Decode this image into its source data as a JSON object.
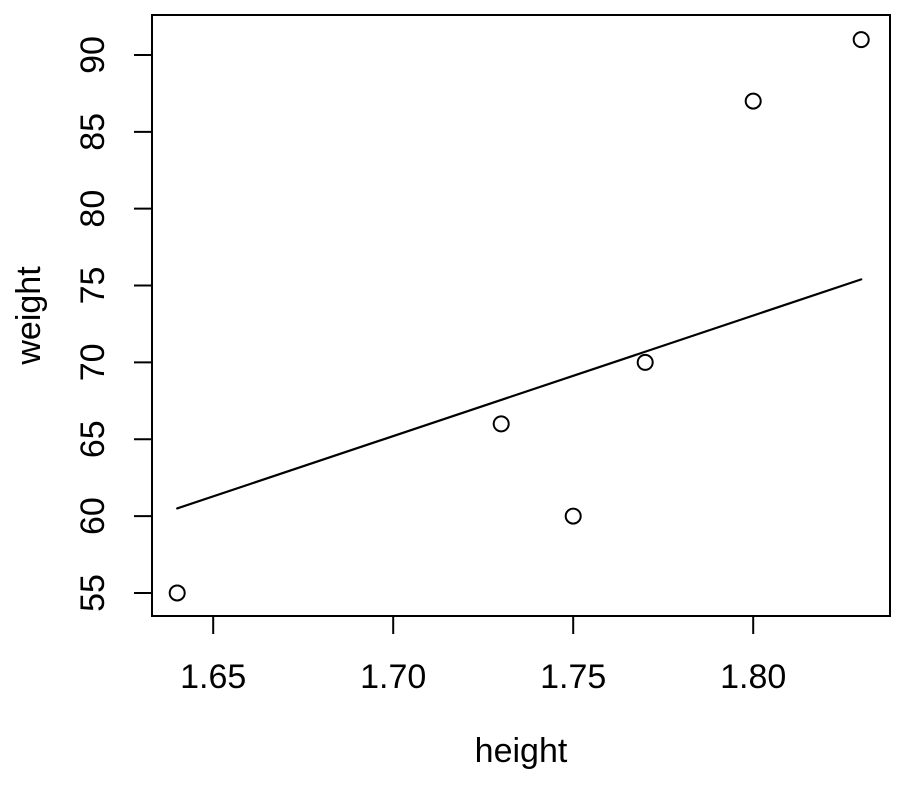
{
  "chart_data": {
    "type": "scatter",
    "title": "",
    "xlabel": "height",
    "ylabel": "weight",
    "marker": "open-circle",
    "color": "#000000",
    "background": "#ffffff",
    "grid": false,
    "legend": null,
    "xlim": [
      1.633,
      1.838
    ],
    "ylim": [
      53.5,
      92.6
    ],
    "x_ticks": [
      {
        "value": 1.65,
        "label": "1.65"
      },
      {
        "value": 1.7,
        "label": "1.70"
      },
      {
        "value": 1.75,
        "label": "1.75"
      },
      {
        "value": 1.8,
        "label": "1.80"
      }
    ],
    "y_ticks": [
      {
        "value": 55,
        "label": "55"
      },
      {
        "value": 60,
        "label": "60"
      },
      {
        "value": 65,
        "label": "65"
      },
      {
        "value": 70,
        "label": "70"
      },
      {
        "value": 75,
        "label": "75"
      },
      {
        "value": 80,
        "label": "80"
      },
      {
        "value": 85,
        "label": "85"
      },
      {
        "value": 90,
        "label": "90"
      }
    ],
    "points": [
      {
        "height": 1.64,
        "weight": 55
      },
      {
        "height": 1.73,
        "weight": 66
      },
      {
        "height": 1.75,
        "weight": 60
      },
      {
        "height": 1.77,
        "weight": 70
      },
      {
        "height": 1.8,
        "weight": 87
      },
      {
        "height": 1.83,
        "weight": 91
      }
    ],
    "fit_line": {
      "x1": 1.64,
      "y1": 60.5,
      "x2": 1.83,
      "y2": 75.4
    }
  }
}
